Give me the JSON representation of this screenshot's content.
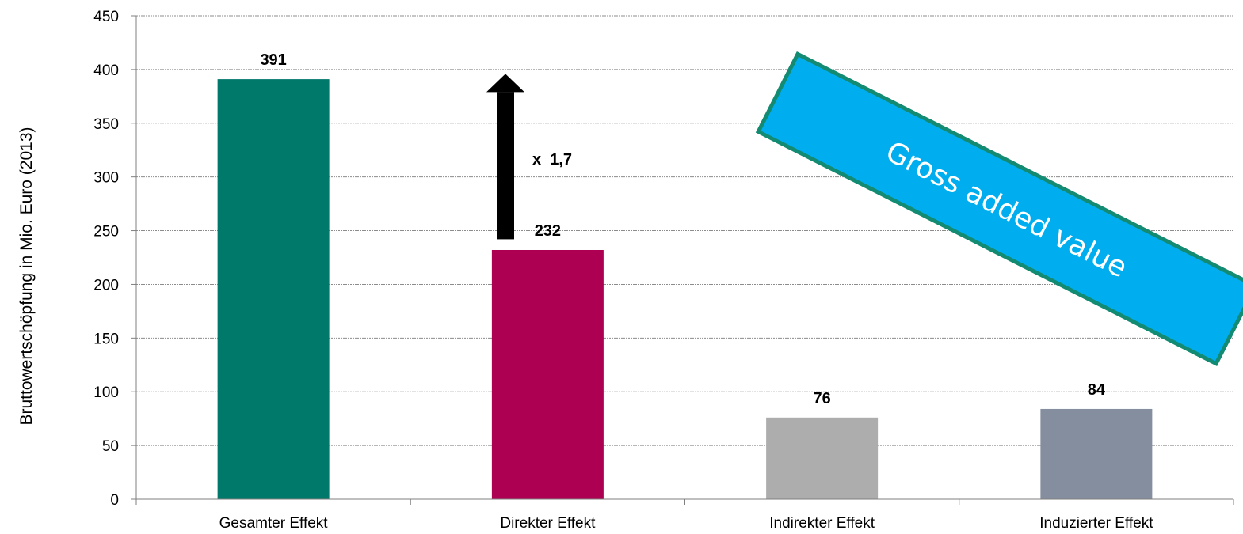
{
  "chart_data": {
    "type": "bar",
    "title": "",
    "xlabel": "",
    "ylabel": "Bruttowertschöpfung in Mio. Euro (2013)",
    "ylim": [
      0,
      450
    ],
    "yticks": [
      0,
      50,
      100,
      150,
      200,
      250,
      300,
      350,
      400,
      450
    ],
    "grid": true,
    "categories": [
      "Gesamter Effekt",
      "Direkter Effekt",
      "Indirekter Effekt",
      "Induzierter Effekt"
    ],
    "values": [
      391,
      232,
      76,
      84
    ],
    "data_labels": [
      "391",
      "232",
      "76",
      "84"
    ],
    "colors": [
      "#00786a",
      "#ad0052",
      "#adadad",
      "#858e9e"
    ],
    "annotations": {
      "multiplier_text": "x  1,7",
      "arrow_from_value": 242,
      "arrow_to_value": 396,
      "banner_text": "Gross added value",
      "banner_fill": "#00aeef",
      "banner_border": "#138a72"
    }
  }
}
